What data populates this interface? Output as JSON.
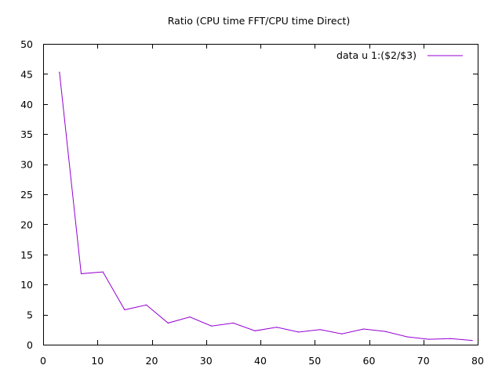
{
  "chart_data": {
    "type": "line",
    "title": "Ratio (CPU time FFT/CPU time Direct)",
    "xlabel": "",
    "ylabel": "",
    "xlim": [
      0,
      80
    ],
    "ylim": [
      0,
      50
    ],
    "xticks": [
      0,
      10,
      20,
      30,
      40,
      50,
      60,
      70,
      80
    ],
    "yticks": [
      0,
      5,
      10,
      15,
      20,
      25,
      30,
      35,
      40,
      45,
      50
    ],
    "grid": false,
    "legend_position": "top-right",
    "series": [
      {
        "name": "data u 1:($2/$3)",
        "color": "#9400d3",
        "x": [
          3,
          7,
          11,
          15,
          19,
          23,
          27,
          31,
          35,
          39,
          43,
          47,
          51,
          55,
          59,
          63,
          67,
          71,
          75,
          79
        ],
        "y": [
          45.3,
          11.8,
          12.1,
          5.8,
          6.6,
          3.6,
          4.6,
          3.1,
          3.6,
          2.3,
          2.9,
          2.1,
          2.5,
          1.8,
          2.6,
          2.2,
          1.3,
          0.9,
          1.0,
          0.7
        ]
      }
    ]
  }
}
